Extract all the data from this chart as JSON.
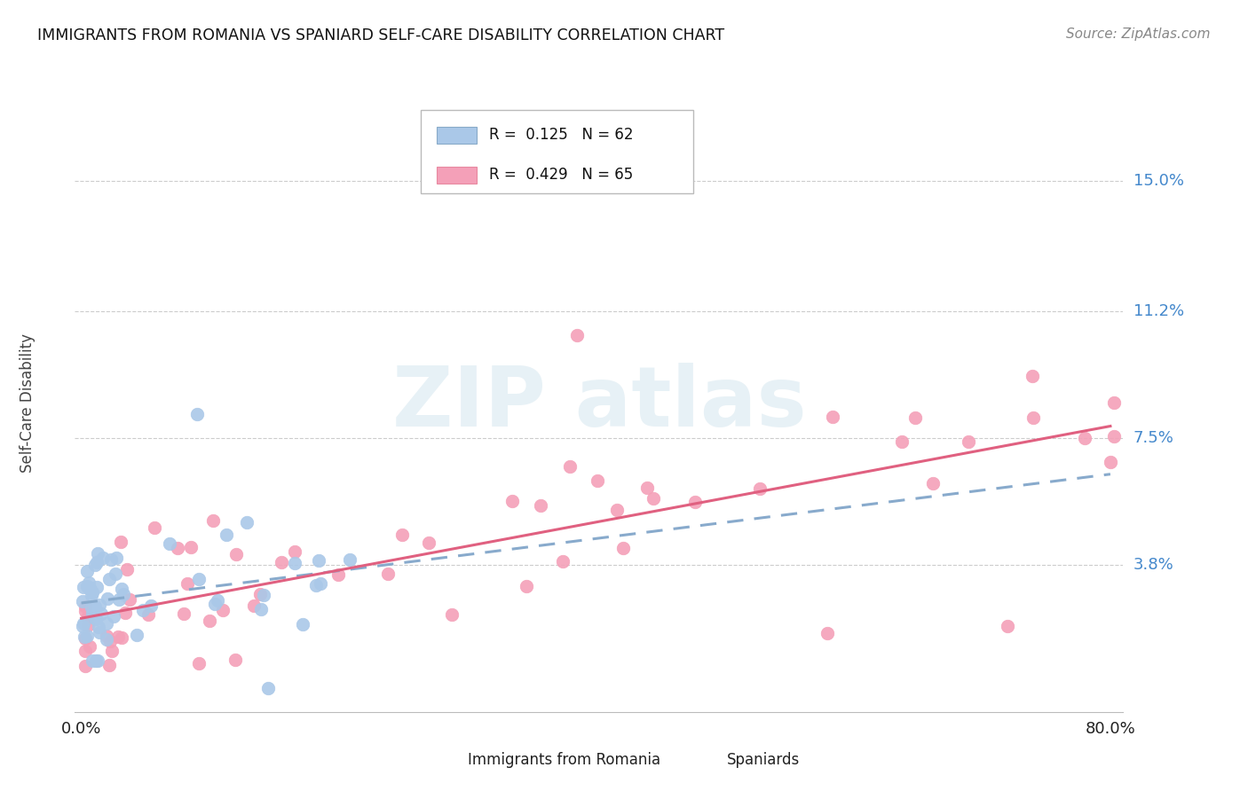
{
  "title": "IMMIGRANTS FROM ROMANIA VS SPANIARD SELF-CARE DISABILITY CORRELATION CHART",
  "source": "Source: ZipAtlas.com",
  "ylabel": "Self-Care Disability",
  "ytick_labels": [
    "15.0%",
    "11.2%",
    "7.5%",
    "3.8%"
  ],
  "ytick_values": [
    0.15,
    0.112,
    0.075,
    0.038
  ],
  "xlim_min": 0.0,
  "xlim_max": 0.8,
  "ylim_min": -0.005,
  "ylim_max": 0.175,
  "romania_color": "#aac8e8",
  "spaniards_color": "#f4a0b8",
  "romania_line_color": "#88aacc",
  "spaniards_line_color": "#e06080",
  "legend_r1": "R =  0.125",
  "legend_n1": "N = 62",
  "legend_r2": "R =  0.429",
  "legend_n2": "N = 65",
  "legend_label1": "Immigrants from Romania",
  "legend_label2": "Spaniards"
}
